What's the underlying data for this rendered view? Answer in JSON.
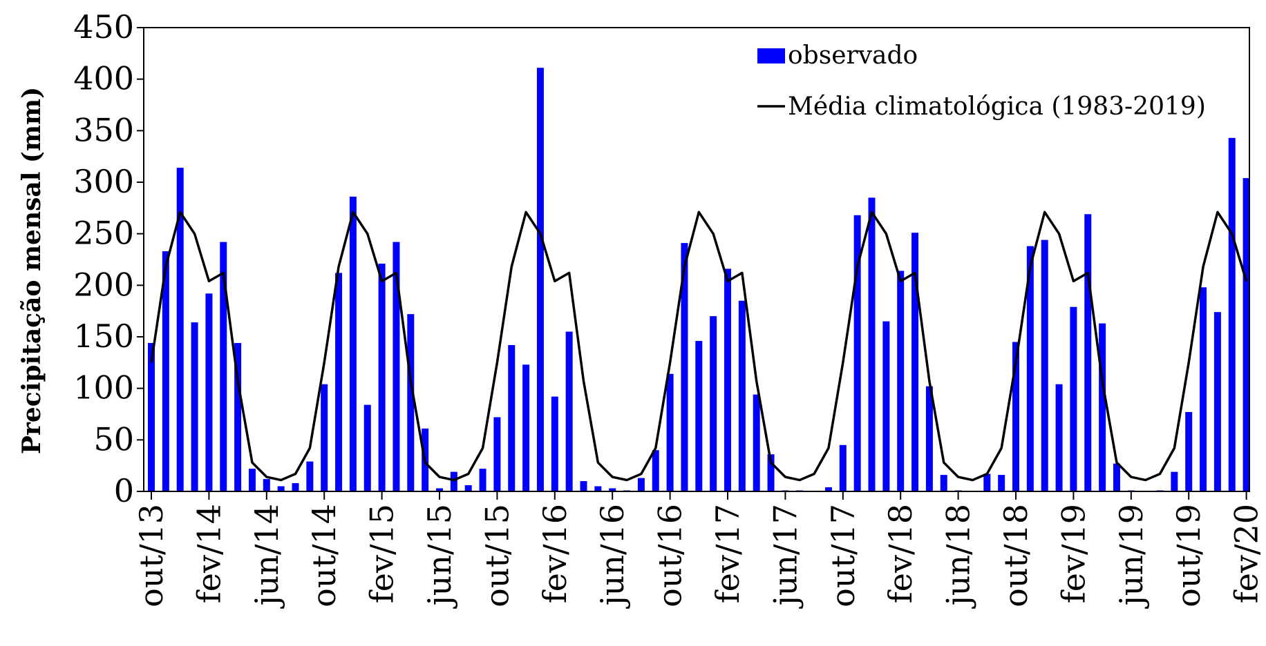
{
  "chart_data": {
    "type": "bar",
    "ylabel": "Precipitação mensal (mm)",
    "ylim": [
      0,
      450
    ],
    "yticks": [
      0,
      50,
      100,
      150,
      200,
      250,
      300,
      350,
      400,
      450
    ],
    "xtick_labels": [
      "out/13",
      "fev/14",
      "jun/14",
      "out/14",
      "fev/15",
      "jun/15",
      "out/15",
      "fev/16",
      "jun/16",
      "out/16",
      "fev/17",
      "jun/17",
      "out/17",
      "fev/18",
      "jun/18",
      "out/18",
      "fev/19",
      "jun/19",
      "out/19",
      "fev/20"
    ],
    "legend_position": "top-right",
    "series": [
      {
        "name": "observado",
        "kind": "bar",
        "color": "#0000ff",
        "values": [
          144,
          233,
          314,
          164,
          192,
          242,
          144,
          22,
          12,
          5,
          8,
          29,
          104,
          212,
          286,
          84,
          221,
          242,
          172,
          61,
          3,
          19,
          6,
          22,
          72,
          142,
          123,
          411,
          92,
          155,
          10,
          5,
          3,
          1,
          13,
          40,
          114,
          241,
          146,
          170,
          216,
          185,
          94,
          36,
          1,
          1,
          0,
          4,
          45,
          268,
          285,
          165,
          214,
          251,
          102,
          16,
          1,
          0,
          17,
          16,
          145,
          238,
          244,
          104,
          179,
          269,
          163,
          27,
          1,
          0,
          1,
          19,
          77,
          198,
          174,
          343,
          304
        ]
      },
      {
        "name": "Média climatológica (1983-2019)",
        "kind": "line",
        "color": "#000000",
        "values": [
          125,
          218,
          271,
          250,
          204,
          212,
          107,
          28,
          14,
          11,
          17,
          42,
          125,
          218,
          271,
          250,
          204,
          212,
          107,
          28,
          14,
          11,
          17,
          42,
          125,
          218,
          271,
          250,
          204,
          212,
          107,
          28,
          14,
          11,
          17,
          42,
          125,
          218,
          271,
          250,
          204,
          212,
          107,
          28,
          14,
          11,
          17,
          42,
          125,
          218,
          271,
          250,
          204,
          212,
          107,
          28,
          14,
          11,
          17,
          42,
          125,
          218,
          271,
          250,
          204,
          212,
          107,
          28,
          14,
          11,
          17,
          42,
          125,
          218,
          271,
          250,
          204
        ]
      }
    ]
  }
}
